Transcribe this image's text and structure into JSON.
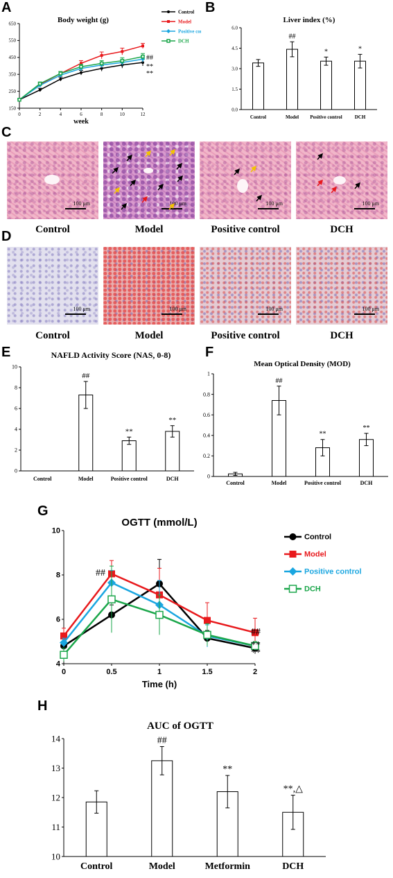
{
  "panels": {
    "A": "A",
    "B": "B",
    "C": "C",
    "D": "D",
    "E": "E",
    "F": "F",
    "G": "G",
    "H": "H"
  },
  "groups": [
    "Control",
    "Model",
    "Positive control",
    "DCH"
  ],
  "scale_bar_text": "100 μm",
  "colors": {
    "control": "#000000",
    "model": "#e8191c",
    "positive": "#1aa6e0",
    "dch": "#1aa64a"
  },
  "chart_data": [
    {
      "id": "A",
      "type": "line",
      "title": "Body weight (g)",
      "xlabel": "week",
      "ylabel": "",
      "x": [
        0,
        2,
        4,
        6,
        8,
        10,
        12
      ],
      "xticks": [
        "0",
        "2",
        "4",
        "6",
        "8",
        "10",
        "12"
      ],
      "yticks": [
        "150",
        "250",
        "350",
        "450",
        "550",
        "650"
      ],
      "ylim": [
        150,
        650
      ],
      "series": [
        {
          "name": "Control",
          "color": "#000000",
          "values": [
            200,
            258,
            322,
            360,
            385,
            405,
            420
          ],
          "err": [
            5,
            10,
            12,
            14,
            16,
            18,
            20
          ]
        },
        {
          "name": "Model",
          "color": "#e8191c",
          "values": [
            200,
            290,
            355,
            415,
            462,
            485,
            518
          ],
          "err": [
            5,
            10,
            12,
            16,
            20,
            20,
            15
          ]
        },
        {
          "name": "Positive control",
          "color": "#1aa6e0",
          "values": [
            200,
            285,
            345,
            385,
            405,
            420,
            440
          ],
          "err": [
            5,
            10,
            12,
            14,
            16,
            18,
            18
          ]
        },
        {
          "name": "DCH",
          "color": "#1aa64a",
          "values": [
            200,
            295,
            355,
            395,
            415,
            430,
            455
          ],
          "err": [
            5,
            10,
            12,
            14,
            16,
            18,
            18
          ]
        }
      ],
      "annotations": [
        "##",
        "**",
        "**"
      ],
      "legend": "top-right"
    },
    {
      "id": "B",
      "type": "bar",
      "title": "Liver index (%)",
      "categories": [
        "Control",
        "Model",
        "Positive control",
        "DCH"
      ],
      "values": [
        3.42,
        4.42,
        3.55,
        3.55
      ],
      "err": [
        0.25,
        0.55,
        0.3,
        0.5
      ],
      "yticks": [
        "0.0",
        "1.5",
        "3.0",
        "4.5",
        "6.0"
      ],
      "ylim": [
        0,
        6
      ],
      "annotations": [
        "",
        "##",
        "*",
        "*"
      ]
    },
    {
      "id": "E",
      "type": "bar",
      "title": "NAFLD Activity Score (NAS, 0-8)",
      "categories": [
        "Control",
        "Model",
        "Positive control",
        "DCH"
      ],
      "values": [
        0,
        7.3,
        2.9,
        3.8
      ],
      "err": [
        0,
        1.3,
        0.35,
        0.55
      ],
      "yticks": [
        "0",
        "2",
        "4",
        "6",
        "8",
        "10"
      ],
      "ylim": [
        0,
        10
      ],
      "annotations": [
        "",
        "##",
        "**",
        "**"
      ]
    },
    {
      "id": "F",
      "type": "bar",
      "title": "Mean Optical Density (MOD)",
      "categories": [
        "Control",
        "Model",
        "Positive control",
        "DCH"
      ],
      "values": [
        0.025,
        0.74,
        0.28,
        0.36
      ],
      "err": [
        0.015,
        0.14,
        0.08,
        0.06
      ],
      "yticks": [
        "0",
        "0.2",
        "0.4",
        "0.6",
        "0.8",
        "1"
      ],
      "ylim": [
        0,
        1
      ],
      "annotations": [
        "",
        "##",
        "**",
        "**"
      ]
    },
    {
      "id": "G",
      "type": "line",
      "title": "OGTT (mmol/L)",
      "xlabel": "Time (h)",
      "ylabel": "",
      "x": [
        0,
        0.5,
        1,
        1.5,
        2
      ],
      "xticks": [
        "0",
        "0.5",
        "1",
        "1.5",
        "2"
      ],
      "yticks": [
        "4",
        "6",
        "8",
        "10"
      ],
      "ylim": [
        4,
        10
      ],
      "series": [
        {
          "name": "Control",
          "color": "#000000",
          "values": [
            4.8,
            6.2,
            7.6,
            5.15,
            4.7
          ],
          "err": [
            0.2,
            0.45,
            1.1,
            0.35,
            0.25
          ]
        },
        {
          "name": "Model",
          "color": "#e8191c",
          "values": [
            5.25,
            8.05,
            7.1,
            5.95,
            5.4
          ],
          "err": [
            0.35,
            0.6,
            1.2,
            0.8,
            0.65
          ]
        },
        {
          "name": "Positive control",
          "color": "#1aa6e0",
          "values": [
            4.95,
            7.65,
            6.65,
            5.25,
            4.8
          ],
          "err": [
            0.2,
            0.55,
            1.1,
            0.5,
            0.2
          ]
        },
        {
          "name": "DCH",
          "color": "#1aa64a",
          "values": [
            4.4,
            6.9,
            6.2,
            5.3,
            4.8
          ],
          "err": [
            0.3,
            1.5,
            0.9,
            0.5,
            0.2
          ]
        }
      ],
      "annotations": [
        "##",
        "##",
        "**",
        "**"
      ],
      "legend": "right"
    },
    {
      "id": "H",
      "type": "bar",
      "title": "AUC of OGTT",
      "categories": [
        "Control",
        "Model",
        "Metformin",
        "DCH"
      ],
      "values": [
        11.85,
        13.25,
        12.2,
        11.5
      ],
      "err": [
        0.38,
        0.48,
        0.55,
        0.58
      ],
      "yticks": [
        "10",
        "11",
        "12",
        "13",
        "14"
      ],
      "ylim": [
        10,
        14
      ],
      "annotations": [
        "",
        "##",
        "**",
        "**,△"
      ]
    }
  ]
}
